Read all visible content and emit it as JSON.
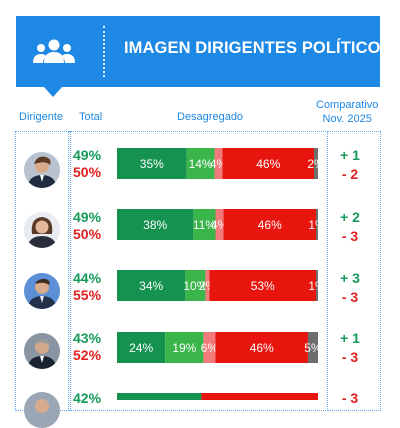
{
  "header": {
    "title": "IMAGEN DIRIGENTES POLÍTICOS"
  },
  "columns": {
    "leader": "Dirigente",
    "total": "Total",
    "breakdown": "Desagregado",
    "comparison_line1": "Comparativo",
    "comparison_line2": "Nov. 2025"
  },
  "colors": {
    "header": "#1e88e5",
    "very_positive": "#15924f",
    "positive": "#39b54a",
    "negative_light": "#f27a7a",
    "negative": "#e8150f",
    "unknown": "#6d6d6d"
  },
  "chart_data": {
    "type": "bar",
    "stacked": true,
    "orientation": "horizontal",
    "rows": [
      {
        "positive_total": "49%",
        "negative_total": "50%",
        "segments": [
          35,
          14,
          4,
          46,
          2
        ],
        "labels": [
          "35%",
          "14%",
          "4%",
          "46%",
          "2%"
        ],
        "change_positive": "+ 1",
        "change_negative": "- 2"
      },
      {
        "positive_total": "49%",
        "negative_total": "50%",
        "segments": [
          38,
          11,
          4,
          46,
          1
        ],
        "labels": [
          "38%",
          "11%",
          "4%",
          "46%",
          "1%"
        ],
        "change_positive": "+ 2",
        "change_negative": "- 3"
      },
      {
        "positive_total": "44%",
        "negative_total": "55%",
        "segments": [
          34,
          10,
          2,
          53,
          1
        ],
        "labels": [
          "34%",
          "10%",
          "2%",
          "53%",
          "1%"
        ],
        "change_positive": "+ 3",
        "change_negative": "- 3"
      },
      {
        "positive_total": "43%",
        "negative_total": "52%",
        "segments": [
          24,
          19,
          6,
          46,
          5
        ],
        "labels": [
          "24%",
          "19%",
          "6%",
          "46%",
          "5%"
        ],
        "change_positive": "+ 1",
        "change_negative": "- 3"
      }
    ],
    "partial_row": {
      "positive_total": "42%",
      "change": "- 3"
    }
  }
}
